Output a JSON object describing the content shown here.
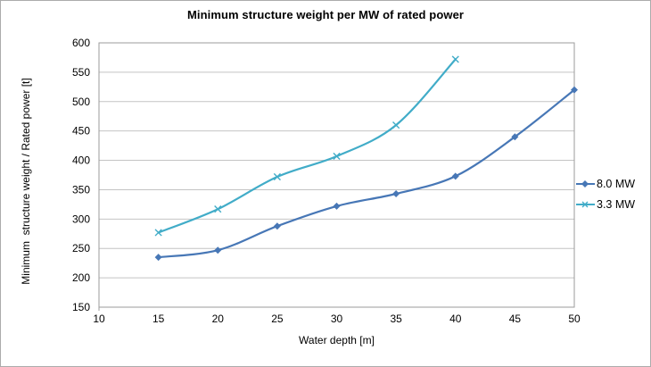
{
  "chart_data": {
    "type": "line",
    "title": "Minimum structure weight per MW of rated power",
    "xlabel": "Water depth [m]",
    "ylabel": "Minimum  structure weight / Rated power [t]",
    "xlim": [
      10,
      50
    ],
    "ylim": [
      150,
      600
    ],
    "x_ticks": [
      10,
      15,
      20,
      25,
      30,
      35,
      40,
      45,
      50
    ],
    "y_ticks": [
      150,
      200,
      250,
      300,
      350,
      400,
      450,
      500,
      550,
      600
    ],
    "grid": "horizontal",
    "legend_position": "right-outside",
    "line_style": "smoothed",
    "series": [
      {
        "name": "8.0 MW",
        "marker": "diamond",
        "color": "#4777B6",
        "x": [
          15,
          20,
          25,
          30,
          35,
          40,
          45,
          50
        ],
        "values": [
          235,
          247,
          288,
          322,
          343,
          373,
          440,
          520
        ]
      },
      {
        "name": "3.3 MW",
        "marker": "x",
        "color": "#41ACC8",
        "x": [
          15,
          20,
          25,
          30,
          35,
          40
        ],
        "values": [
          277,
          317,
          372,
          407,
          460,
          572
        ]
      }
    ],
    "colors": {
      "background": "#FFFFFF",
      "gridline": "#C4C4C4",
      "plot_border": "#9B9B9B",
      "text": "#000000",
      "outer_border": "#ABABAB"
    }
  }
}
